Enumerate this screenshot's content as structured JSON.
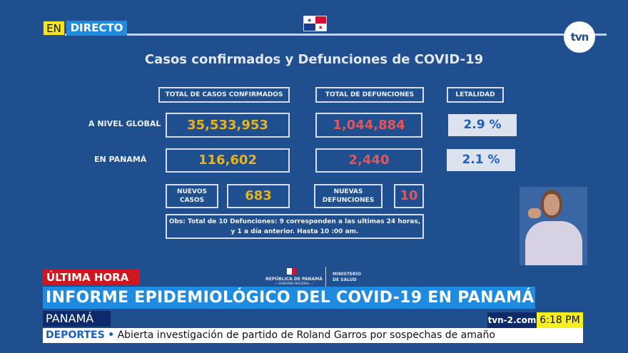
{
  "live": {
    "en": "EN",
    "directo": "DIRECTO"
  },
  "logo": "tvn",
  "slide": {
    "title": "Casos confirmados y Defunciones de COVID-19",
    "headers": {
      "cases": "TOTAL DE CASOS CONFIRMADOS",
      "deaths": "TOTAL DE DEFUNCIONES",
      "lethality": "LETALIDAD"
    },
    "rows": [
      {
        "label": "A NIVEL GLOBAL",
        "cases": "35,533,953",
        "deaths": "1,044,884",
        "lethality": "2.9 %"
      },
      {
        "label": "EN PANAMÁ",
        "cases": "116,602",
        "deaths": "2,440",
        "lethality": "2.1 %"
      }
    ],
    "new_cases_label": "NUEVOS CASOS",
    "new_cases": "683",
    "new_deaths_label": "NUEVAS DEFUNCIONES",
    "new_deaths": "10",
    "obs": "Obs: Total de 10 Defunciones: 9 corresponden a las ultimas 24 horas, y 1  a día anterior.  Hasta 10 :00 am.",
    "footer": {
      "republica": "REPÚBLICA DE PANAMÁ",
      "gobierno": "— GOBIERNO NACIONAL —",
      "ministerio": "MINISTERIO DE SALUD"
    }
  },
  "lower_third": {
    "tag": "ÚLTIMA HORA",
    "headline": "INFORME EPIDEMIOLÓGICO DEL COVID-19 EN PANAMÁ",
    "location": "PANAMÁ",
    "site": "tvn-2.com",
    "time": "6:18 PM",
    "ticker_category": "DEPORTES",
    "ticker_text": "Abierta investigación de partido de Roland Garros por sospechas de amaño"
  }
}
